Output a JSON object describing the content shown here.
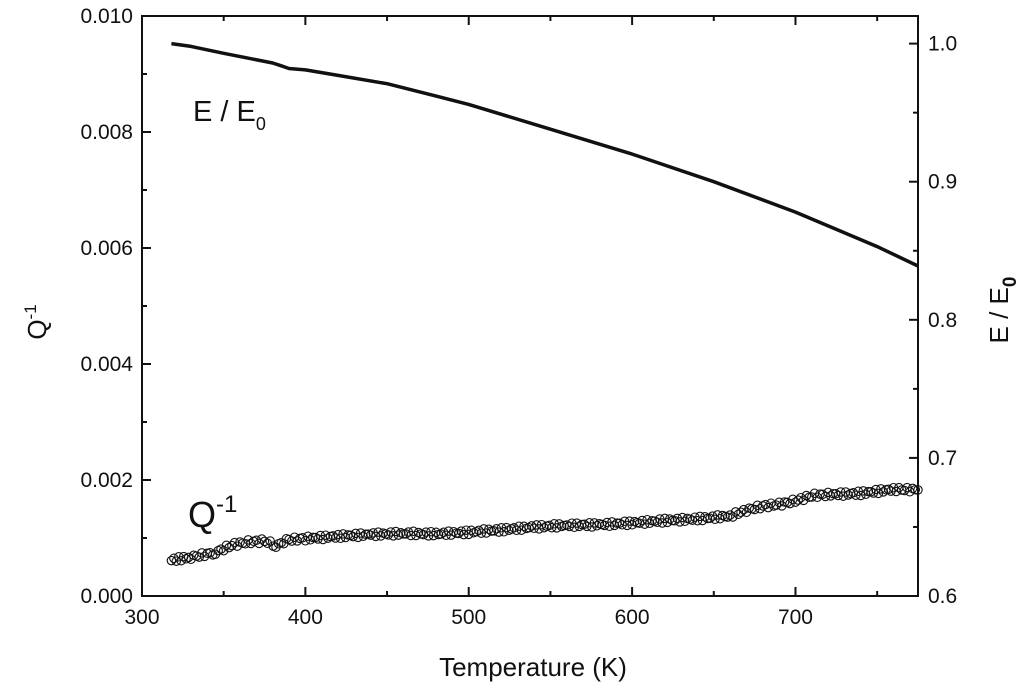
{
  "chart_data": {
    "type": "line",
    "title": "",
    "xlabel": "Temperature (K)",
    "ylabel_left": {
      "base": "Q",
      "sup": "-1"
    },
    "ylabel_right": {
      "base": "E / E",
      "sub": "0"
    },
    "xlim": [
      300,
      775
    ],
    "ylim_left": [
      0.0,
      0.01
    ],
    "ylim_right": [
      0.6,
      1.02
    ],
    "x_ticks": [
      "300",
      "400",
      "500",
      "600",
      "700"
    ],
    "y_left_ticks": [
      "0.000",
      "0.002",
      "0.004",
      "0.006",
      "0.008",
      "0.010"
    ],
    "y_right_ticks": [
      "0.6",
      "0.7",
      "0.8",
      "0.9",
      "1.0"
    ],
    "grid": false,
    "annotations": {
      "modulus": {
        "base": "E / E",
        "sub": "0"
      },
      "damping": {
        "base": "Q",
        "sup": "-1"
      }
    },
    "series": [
      {
        "axis": "right",
        "style": "line",
        "x": [
          318,
          330,
          350,
          380,
          385,
          390,
          400,
          420,
          450,
          480,
          500,
          550,
          600,
          650,
          700,
          720,
          750,
          775
        ],
        "y": [
          1.0,
          0.998,
          0.993,
          0.986,
          0.984,
          0.982,
          0.981,
          0.977,
          0.971,
          0.962,
          0.956,
          0.938,
          0.92,
          0.9,
          0.878,
          0.868,
          0.853,
          0.839
        ]
      },
      {
        "axis": "left",
        "style": "circles",
        "x": [
          318,
          330,
          345,
          355,
          365,
          375,
          382,
          390,
          400,
          420,
          440,
          460,
          480,
          500,
          520,
          540,
          560,
          580,
          600,
          620,
          640,
          660,
          670,
          680,
          690,
          700,
          710,
          720,
          740,
          760,
          775
        ],
        "y": [
          0.00062,
          0.00067,
          0.00075,
          0.00088,
          0.00093,
          0.00095,
          0.00087,
          0.00097,
          0.00099,
          0.00103,
          0.00106,
          0.00108,
          0.00107,
          0.0011,
          0.00114,
          0.00119,
          0.00122,
          0.00123,
          0.00126,
          0.0013,
          0.00133,
          0.00138,
          0.00148,
          0.00155,
          0.00158,
          0.00164,
          0.00173,
          0.00175,
          0.00177,
          0.00184,
          0.00183
        ]
      }
    ]
  }
}
